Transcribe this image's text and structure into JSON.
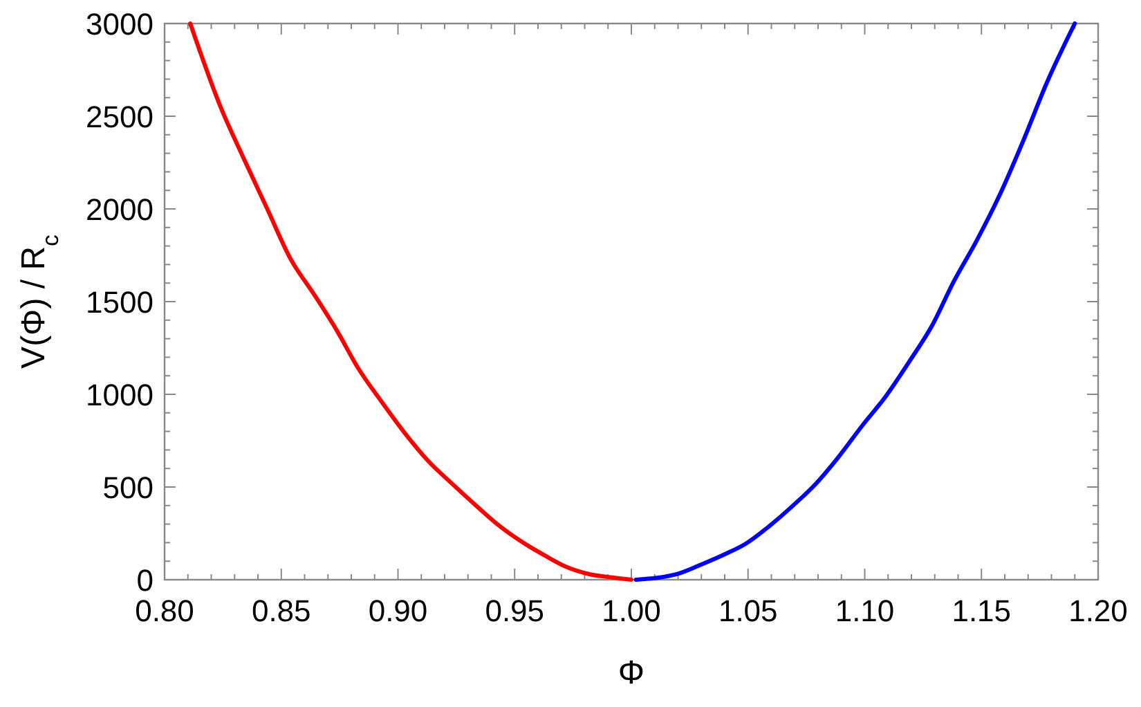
{
  "chart_data": {
    "type": "line",
    "xlabel": "Φ",
    "ylabel": "V(Φ) / R$_{c}$",
    "xlim": [
      0.8,
      1.2
    ],
    "ylim": [
      0,
      3000
    ],
    "xticks": [
      {
        "value": 0.8,
        "label": "0.80"
      },
      {
        "value": 0.81,
        "label": null
      },
      {
        "value": 0.82,
        "label": null
      },
      {
        "value": 0.83,
        "label": null
      },
      {
        "value": 0.84,
        "label": null
      },
      {
        "value": 0.85,
        "label": "0.85"
      },
      {
        "value": 0.86,
        "label": null
      },
      {
        "value": 0.87,
        "label": null
      },
      {
        "value": 0.88,
        "label": null
      },
      {
        "value": 0.89,
        "label": null
      },
      {
        "value": 0.9,
        "label": "0.90"
      },
      {
        "value": 0.91,
        "label": null
      },
      {
        "value": 0.92,
        "label": null
      },
      {
        "value": 0.93,
        "label": null
      },
      {
        "value": 0.94,
        "label": null
      },
      {
        "value": 0.95,
        "label": "0.95"
      },
      {
        "value": 0.96,
        "label": null
      },
      {
        "value": 0.97,
        "label": null
      },
      {
        "value": 0.98,
        "label": null
      },
      {
        "value": 0.99,
        "label": null
      },
      {
        "value": 1.0,
        "label": "1.00"
      },
      {
        "value": 1.01,
        "label": null
      },
      {
        "value": 1.02,
        "label": null
      },
      {
        "value": 1.03,
        "label": null
      },
      {
        "value": 1.04,
        "label": null
      },
      {
        "value": 1.05,
        "label": "1.05"
      },
      {
        "value": 1.06,
        "label": null
      },
      {
        "value": 1.07,
        "label": null
      },
      {
        "value": 1.08,
        "label": null
      },
      {
        "value": 1.09,
        "label": null
      },
      {
        "value": 1.1,
        "label": "1.10"
      },
      {
        "value": 1.11,
        "label": null
      },
      {
        "value": 1.12,
        "label": null
      },
      {
        "value": 1.13,
        "label": null
      },
      {
        "value": 1.14,
        "label": null
      },
      {
        "value": 1.15,
        "label": "1.15"
      },
      {
        "value": 1.16,
        "label": null
      },
      {
        "value": 1.17,
        "label": null
      },
      {
        "value": 1.18,
        "label": null
      },
      {
        "value": 1.19,
        "label": null
      },
      {
        "value": 1.2,
        "label": "1.20"
      }
    ],
    "yticks": [
      0,
      {
        "value": 100,
        "label": null
      },
      {
        "value": 200,
        "label": null
      },
      {
        "value": 300,
        "label": null
      },
      {
        "value": 400,
        "label": null
      },
      500,
      {
        "value": 600,
        "label": null
      },
      {
        "value": 700,
        "label": null
      },
      {
        "value": 800,
        "label": null
      },
      {
        "value": 900,
        "label": null
      },
      1000,
      {
        "value": 1100,
        "label": null
      },
      {
        "value": 1200,
        "label": null
      },
      {
        "value": 1300,
        "label": null
      },
      {
        "value": 1400,
        "label": null
      },
      1500,
      {
        "value": 1600,
        "label": null
      },
      {
        "value": 1700,
        "label": null
      },
      {
        "value": 1800,
        "label": null
      },
      {
        "value": 1900,
        "label": null
      },
      2000,
      {
        "value": 2100,
        "label": null
      },
      {
        "value": 2200,
        "label": null
      },
      {
        "value": 2300,
        "label": null
      },
      {
        "value": 2400,
        "label": null
      },
      2500,
      {
        "value": 2600,
        "label": null
      },
      {
        "value": 2700,
        "label": null
      },
      {
        "value": 2800,
        "label": null
      },
      {
        "value": 2900,
        "label": null
      },
      3000
    ],
    "marker": "none",
    "line_style": "solid",
    "series": [
      {
        "color": "#ff0000",
        "x": [
          0.811,
          0.824,
          0.834,
          0.844,
          0.854,
          0.864,
          0.874,
          0.883,
          0.893,
          0.903,
          0.913,
          0.923,
          0.933,
          0.943,
          0.953,
          0.963,
          0.972,
          0.982,
          0.992,
          1.0
        ],
        "values": [
          3000,
          2550,
          2270,
          2000,
          1730,
          1540,
          1340,
          1140,
          960,
          790,
          640,
          520,
          405,
          295,
          205,
          130,
          70,
          30,
          12,
          0
        ]
      },
      {
        "color": "#0000ff",
        "x": [
          1.002,
          1.02,
          1.03,
          1.04,
          1.049,
          1.059,
          1.069,
          1.079,
          1.089,
          1.099,
          1.109,
          1.119,
          1.129,
          1.138,
          1.148,
          1.158,
          1.168,
          1.178,
          1.19
        ],
        "values": [
          0,
          32,
          82,
          137,
          194,
          288,
          397,
          517,
          666,
          832,
          989,
          1175,
          1374,
          1605,
          1830,
          2080,
          2370,
          2680,
          3000
        ]
      }
    ]
  }
}
